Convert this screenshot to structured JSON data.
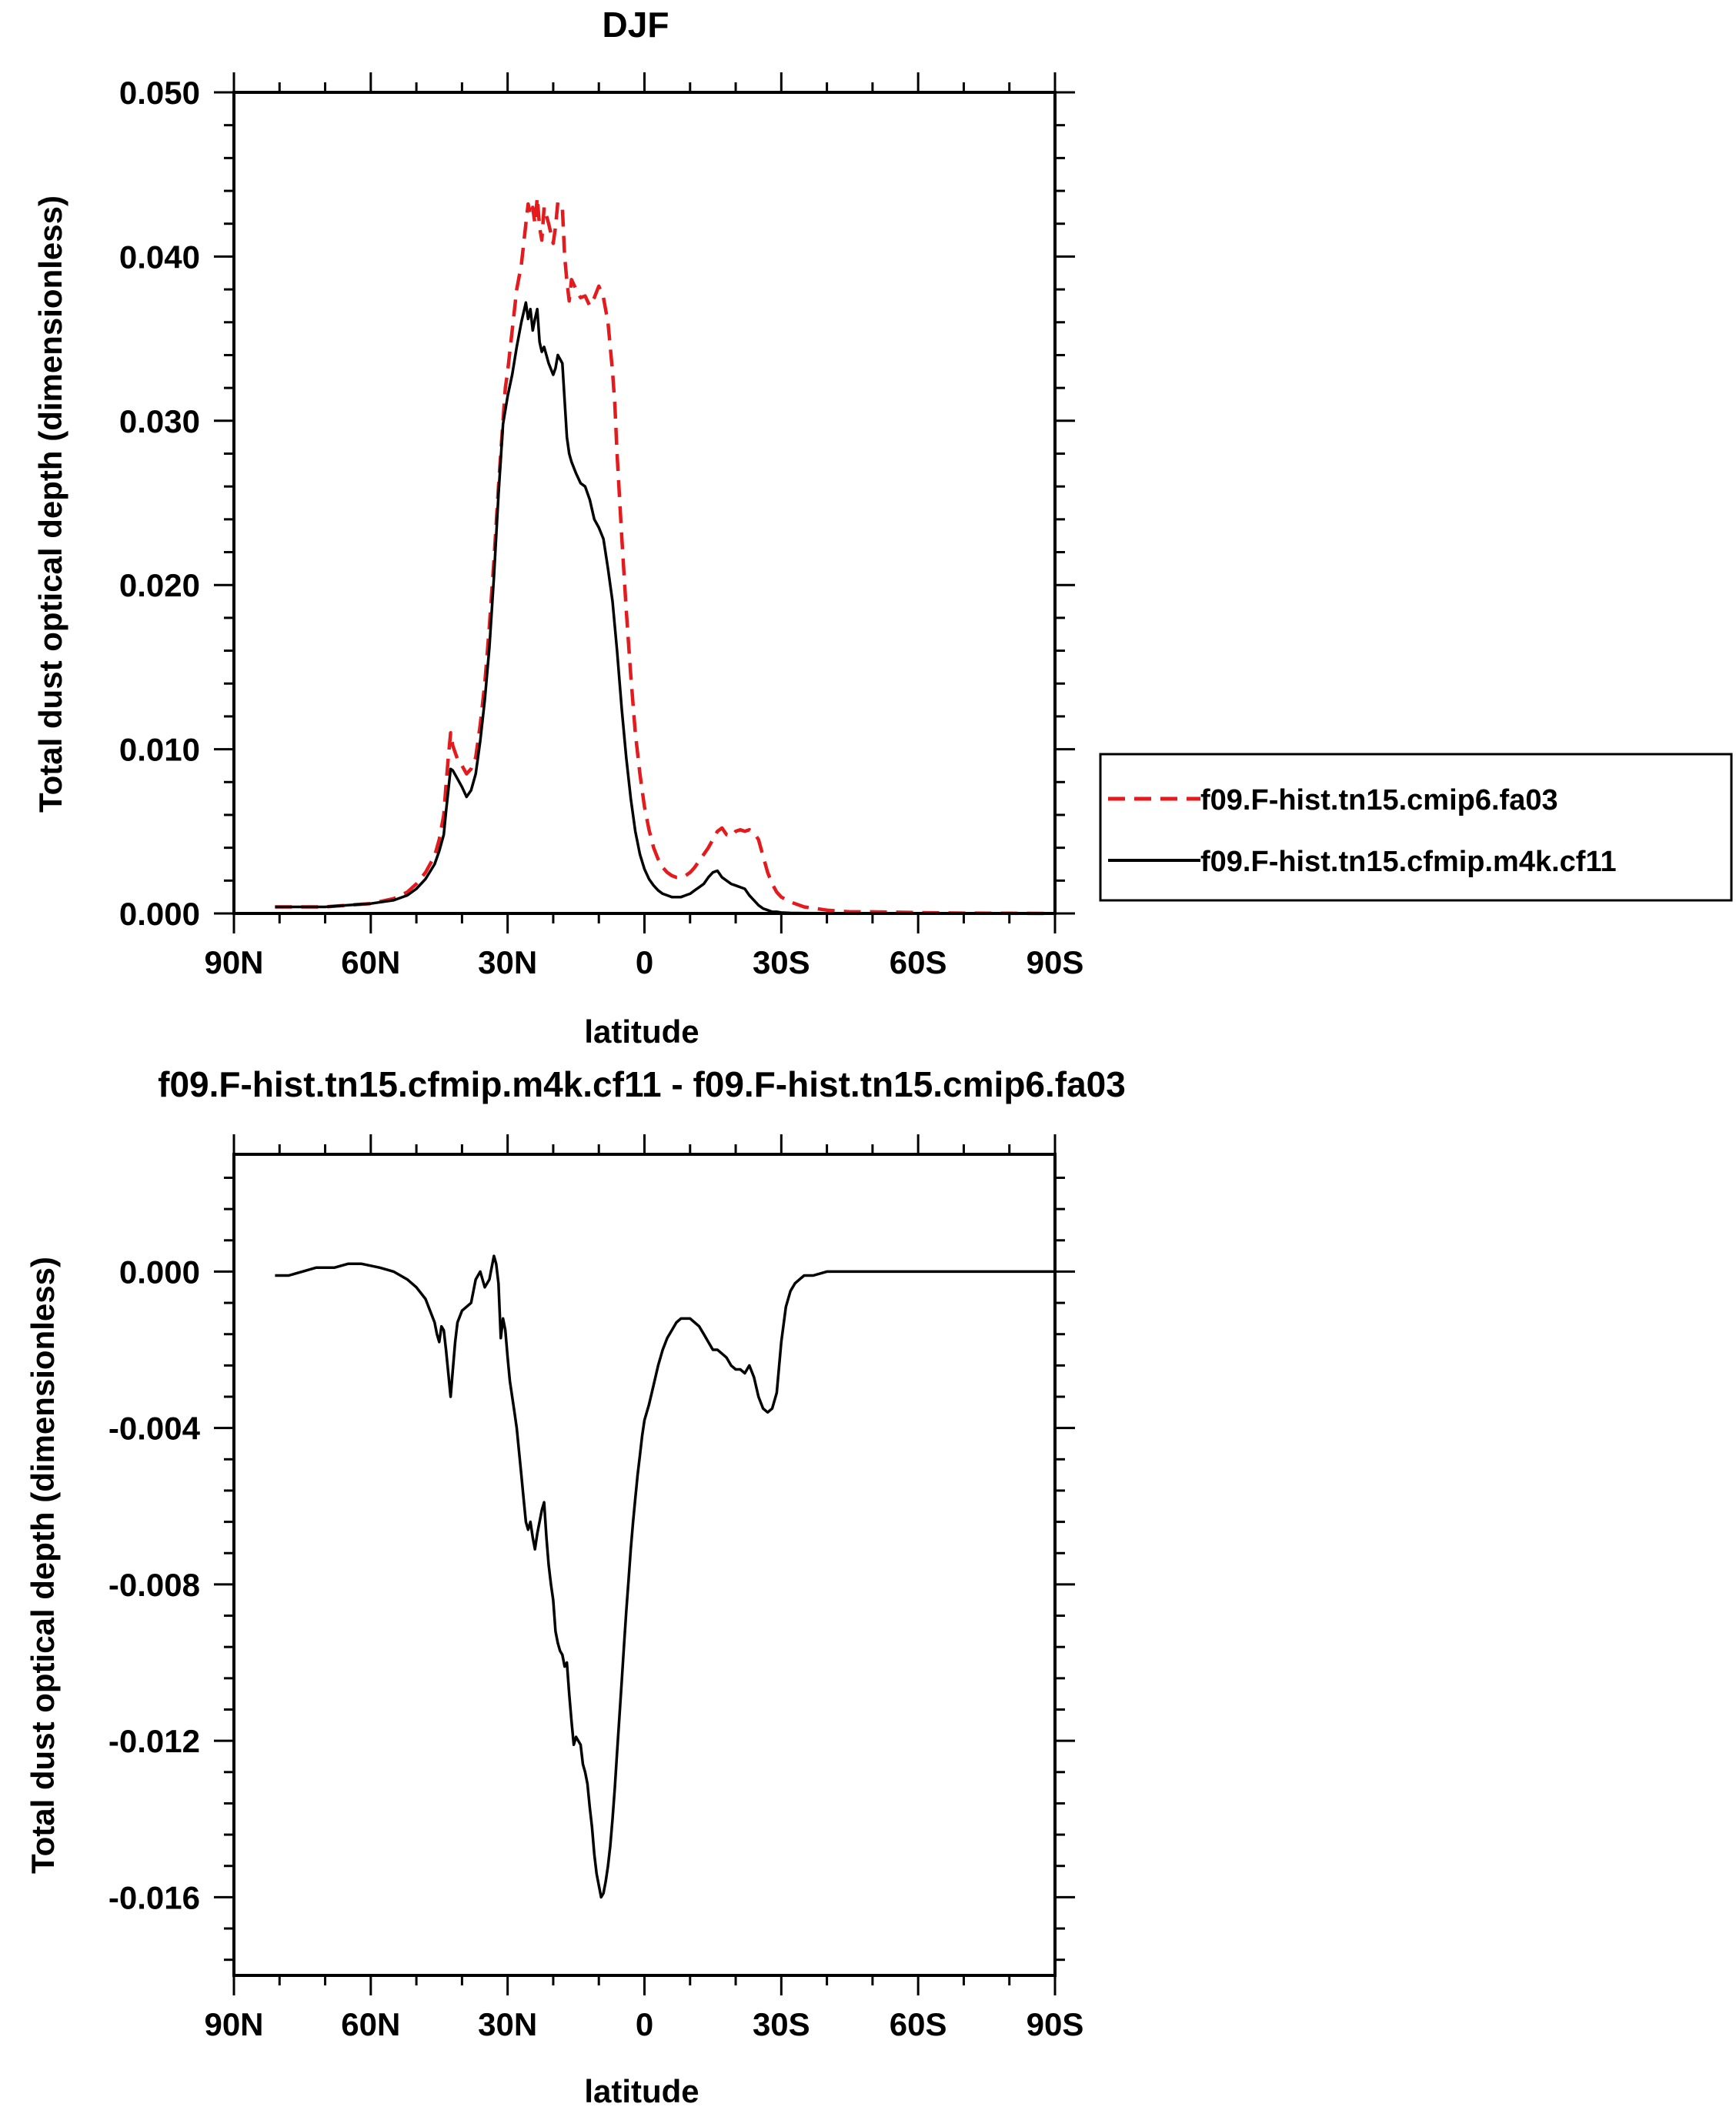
{
  "chart_data": [
    {
      "type": "line",
      "title": "DJF",
      "xlabel": "latitude",
      "ylabel": "Total dust optical depth (dimensionless)",
      "xlim": [
        90,
        -90
      ],
      "ylim": [
        0.0,
        0.05
      ],
      "xticks": [
        90,
        60,
        30,
        0,
        -30,
        -60,
        -90
      ],
      "xtick_labels": [
        "90N",
        "60N",
        "30N",
        "0",
        "30S",
        "60S",
        "90S"
      ],
      "yticks": [
        0.0,
        0.01,
        0.02,
        0.03,
        0.04,
        0.05
      ],
      "ytick_labels": [
        "0.000",
        "0.010",
        "0.020",
        "0.030",
        "0.040",
        "0.050"
      ],
      "legend": "right",
      "series": [
        {
          "name": "f09.F-hist.tn15.cmip6.fa03",
          "color": "#e41a1c",
          "dash": "dashed",
          "x": [
            81,
            75,
            70,
            65,
            60,
            55,
            52,
            50,
            48,
            46,
            45,
            44,
            43.5,
            43,
            42.5,
            42,
            41,
            40,
            39,
            38,
            37,
            36,
            35,
            34,
            33,
            32,
            31,
            30.5,
            30,
            29,
            28,
            27,
            26,
            25.5,
            25,
            24.5,
            24,
            23.5,
            23,
            22.5,
            22,
            21,
            20,
            19.5,
            19,
            18,
            17.5,
            17,
            16.5,
            16,
            15,
            14,
            13,
            12,
            11,
            10,
            9,
            8,
            7,
            6.5,
            6,
            5,
            4,
            3,
            2,
            1,
            0,
            -1,
            -2,
            -3,
            -4,
            -5,
            -6,
            -7,
            -8,
            -9,
            -10,
            -11,
            -12,
            -13,
            -14,
            -15,
            -16,
            -17,
            -18,
            -19,
            -20,
            -21,
            -22,
            -23,
            -24,
            -25,
            -26,
            -27,
            -28,
            -29,
            -30,
            -32,
            -35,
            -40,
            -45,
            -50,
            -60,
            -70,
            -80,
            -90
          ],
          "y": [
            0.0004,
            0.0004,
            0.0004,
            0.0005,
            0.0006,
            0.0009,
            0.0013,
            0.0018,
            0.0025,
            0.0035,
            0.0045,
            0.006,
            0.0078,
            0.0095,
            0.011,
            0.0102,
            0.0094,
            0.009,
            0.0085,
            0.0088,
            0.0095,
            0.0115,
            0.014,
            0.0175,
            0.0215,
            0.026,
            0.03,
            0.032,
            0.033,
            0.0355,
            0.038,
            0.0395,
            0.042,
            0.0432,
            0.0425,
            0.043,
            0.042,
            0.0436,
            0.0418,
            0.041,
            0.043,
            0.042,
            0.0408,
            0.0418,
            0.0433,
            0.043,
            0.04,
            0.0385,
            0.0373,
            0.0386,
            0.038,
            0.0375,
            0.0376,
            0.037,
            0.0375,
            0.0382,
            0.0375,
            0.036,
            0.033,
            0.031,
            0.028,
            0.023,
            0.0185,
            0.0145,
            0.011,
            0.0085,
            0.0065,
            0.0051,
            0.004,
            0.0033,
            0.0028,
            0.0025,
            0.0023,
            0.0022,
            0.0022,
            0.0023,
            0.0025,
            0.0028,
            0.0032,
            0.0036,
            0.004,
            0.0045,
            0.005,
            0.0052,
            0.0048,
            0.0047,
            0.005,
            0.0051,
            0.005,
            0.0051,
            0.0049,
            0.0045,
            0.0035,
            0.0025,
            0.0018,
            0.0013,
            0.001,
            0.0007,
            0.0004,
            0.0002,
            0.0001,
            0.0001,
            5e-05,
            2e-05,
            1e-05,
            0.0
          ]
        },
        {
          "name": "f09.F-hist.tn15.cfmip.m4k.cf11",
          "color": "#000000",
          "dash": "solid",
          "x": [
            81,
            75,
            70,
            65,
            60,
            55,
            52,
            50,
            48,
            46,
            45,
            44,
            43.5,
            43,
            42.5,
            42,
            41,
            40,
            39,
            38,
            37,
            36,
            35,
            34,
            33,
            32,
            31,
            30,
            29,
            28,
            27,
            26,
            25.5,
            25,
            24.5,
            24,
            23.5,
            23,
            22.5,
            22,
            21,
            20,
            19.5,
            19,
            18,
            17,
            16.5,
            16,
            15,
            14,
            13,
            12,
            11,
            10,
            9,
            8,
            7,
            6,
            5,
            4,
            3,
            2,
            1,
            0,
            -1,
            -2,
            -3,
            -4,
            -5,
            -6,
            -7,
            -8,
            -9,
            -10,
            -11,
            -12,
            -13,
            -14,
            -15,
            -16,
            -17,
            -18,
            -19,
            -20,
            -21,
            -22,
            -23,
            -24,
            -25,
            -26,
            -27,
            -28,
            -29,
            -30,
            -32,
            -35,
            -40,
            -45,
            -50,
            -60,
            -70,
            -80,
            -90
          ],
          "y": [
            0.0004,
            0.0004,
            0.0004,
            0.0005,
            0.0006,
            0.0008,
            0.0011,
            0.0015,
            0.0021,
            0.003,
            0.0038,
            0.0048,
            0.0062,
            0.0075,
            0.0088,
            0.0087,
            0.0082,
            0.0077,
            0.0071,
            0.0075,
            0.0085,
            0.0105,
            0.013,
            0.0162,
            0.0205,
            0.0255,
            0.0298,
            0.0315,
            0.0328,
            0.0345,
            0.036,
            0.0372,
            0.0362,
            0.0368,
            0.0355,
            0.0362,
            0.0368,
            0.0348,
            0.0342,
            0.0345,
            0.0335,
            0.0328,
            0.0332,
            0.034,
            0.0335,
            0.029,
            0.028,
            0.0275,
            0.0268,
            0.0262,
            0.026,
            0.0252,
            0.024,
            0.0235,
            0.0228,
            0.021,
            0.019,
            0.016,
            0.0125,
            0.0095,
            0.007,
            0.005,
            0.0036,
            0.0027,
            0.0021,
            0.0017,
            0.0014,
            0.0012,
            0.0011,
            0.001,
            0.001,
            0.001,
            0.0011,
            0.0012,
            0.0014,
            0.0016,
            0.0018,
            0.0022,
            0.0025,
            0.0026,
            0.0022,
            0.002,
            0.0018,
            0.0017,
            0.0016,
            0.0015,
            0.0011,
            0.0008,
            0.0005,
            0.0003,
            0.0002,
            0.0001,
            0.0001,
            5e-05,
            3e-05,
            2e-05,
            1e-05,
            0.0,
            0.0,
            0.0,
            0.0,
            0.0,
            0.0
          ]
        }
      ]
    },
    {
      "type": "line",
      "title": "f09.F-hist.tn15.cfmip.m4k.cf11 - f09.F-hist.tn15.cmip6.fa03",
      "xlabel": "latitude",
      "ylabel": "Total dust optical depth (dimensionless)",
      "xlim": [
        90,
        -90
      ],
      "ylim": [
        -0.018,
        0.003
      ],
      "xticks": [
        90,
        60,
        30,
        0,
        -30,
        -60,
        -90
      ],
      "xtick_labels": [
        "90N",
        "60N",
        "30N",
        "0",
        "30S",
        "60S",
        "90S"
      ],
      "yticks": [
        0.0,
        -0.004,
        -0.008,
        -0.012,
        -0.016
      ],
      "ytick_labels": [
        "0.000",
        "-0.004",
        "-0.008",
        "-0.012",
        "-0.016"
      ],
      "series": [
        {
          "color": "#000000",
          "dash": "solid",
          "x": [
            81,
            78,
            75,
            72,
            68,
            65,
            62,
            58,
            55,
            52,
            50,
            48,
            47,
            46,
            45.5,
            45,
            44.5,
            44,
            43.5,
            43,
            42.5,
            42,
            41.5,
            41,
            40,
            39,
            38,
            37.5,
            37,
            36,
            35,
            34,
            33.5,
            33,
            32.5,
            32,
            31.5,
            31,
            30.5,
            30,
            29.5,
            29,
            28.5,
            28,
            27.5,
            27,
            26.5,
            26,
            25.5,
            25,
            24.5,
            24,
            23.5,
            23,
            22.5,
            22,
            21.5,
            21,
            20.5,
            20,
            19.5,
            19,
            18.5,
            18,
            17.5,
            17,
            16.5,
            16,
            15.5,
            15,
            14.5,
            14,
            13.5,
            13,
            12.5,
            12,
            11.5,
            11,
            10.5,
            10,
            9.5,
            9,
            8.5,
            8,
            7.5,
            7,
            6.5,
            6,
            5.5,
            5,
            4.5,
            4,
            3.5,
            3,
            2.5,
            2,
            1.5,
            1,
            0.5,
            0,
            -1,
            -2,
            -3,
            -4,
            -5,
            -6,
            -7,
            -8,
            -9,
            -10,
            -11,
            -12,
            -13,
            -14,
            -15,
            -16,
            -17,
            -18,
            -19,
            -20,
            -21,
            -22,
            -23,
            -24,
            -25,
            -26,
            -27,
            -28,
            -29,
            -30,
            -31,
            -32,
            -33,
            -34,
            -35,
            -37,
            -40,
            -45,
            -50,
            -55,
            -60,
            -70,
            -80,
            -90
          ],
          "y": [
            -0.0001,
            -0.0001,
            0.0,
            0.0001,
            0.0001,
            0.0002,
            0.0002,
            0.0001,
            0.0,
            -0.0002,
            -0.0004,
            -0.0007,
            -0.001,
            -0.0013,
            -0.0016,
            -0.0018,
            -0.0014,
            -0.0015,
            -0.002,
            -0.0026,
            -0.0032,
            -0.0025,
            -0.0018,
            -0.0013,
            -0.001,
            -0.0009,
            -0.0008,
            -0.0005,
            -0.0002,
            0.0,
            -0.0004,
            -0.0002,
            0.0001,
            0.0004,
            0.0002,
            -0.0003,
            -0.0017,
            -0.0012,
            -0.0015,
            -0.0022,
            -0.0028,
            -0.0032,
            -0.0036,
            -0.004,
            -0.0046,
            -0.0052,
            -0.0058,
            -0.0064,
            -0.0066,
            -0.0064,
            -0.0068,
            -0.0071,
            -0.0067,
            -0.0064,
            -0.0061,
            -0.0059,
            -0.0068,
            -0.0075,
            -0.008,
            -0.0084,
            -0.0092,
            -0.0095,
            -0.0097,
            -0.0098,
            -0.0101,
            -0.01,
            -0.0108,
            -0.0115,
            -0.0121,
            -0.0119,
            -0.012,
            -0.0121,
            -0.0126,
            -0.0128,
            -0.0131,
            -0.0137,
            -0.0142,
            -0.0149,
            -0.0154,
            -0.0157,
            -0.016,
            -0.0159,
            -0.0156,
            -0.0152,
            -0.0147,
            -0.014,
            -0.0132,
            -0.0123,
            -0.0114,
            -0.0105,
            -0.0096,
            -0.0087,
            -0.0079,
            -0.0071,
            -0.0064,
            -0.0058,
            -0.0052,
            -0.0047,
            -0.0042,
            -0.0038,
            -0.0034,
            -0.0029,
            -0.0024,
            -0.002,
            -0.0017,
            -0.0015,
            -0.0013,
            -0.0012,
            -0.0012,
            -0.0012,
            -0.0013,
            -0.0014,
            -0.0016,
            -0.0018,
            -0.002,
            -0.002,
            -0.0021,
            -0.0022,
            -0.0024,
            -0.0025,
            -0.0025,
            -0.0026,
            -0.0024,
            -0.0027,
            -0.0032,
            -0.0035,
            -0.0036,
            -0.0035,
            -0.0031,
            -0.0018,
            -0.0009,
            -0.0005,
            -0.0003,
            -0.0002,
            -0.0001,
            -0.0001,
            0.0,
            0.0,
            0.0,
            0.0,
            0.0,
            0.0,
            0.0,
            0.0
          ]
        }
      ]
    }
  ]
}
